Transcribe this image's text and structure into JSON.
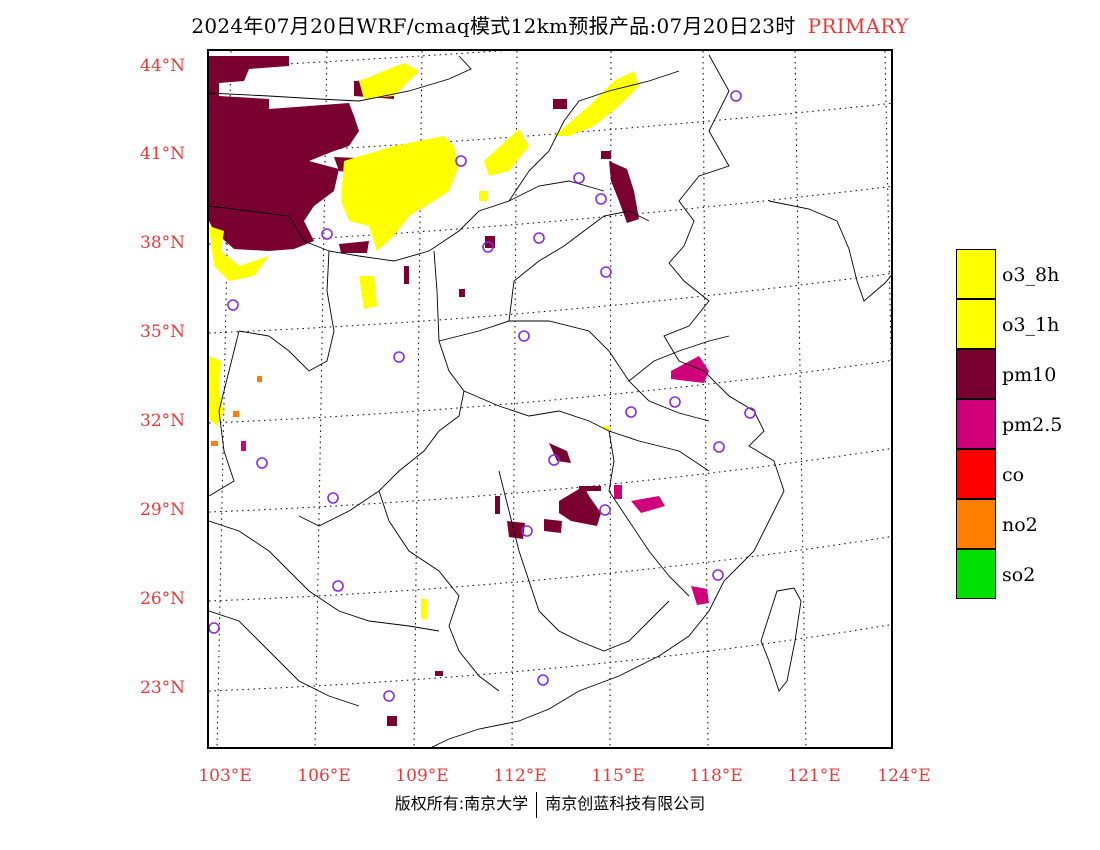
{
  "title": {
    "text": "2024年07月20日WRF/cmaq模式12km预报产品:07月20日23时",
    "tag": "PRIMARY"
  },
  "colors": {
    "tick_label": "#e8393a",
    "o3": "#ffff00",
    "pm10": "#7a0030",
    "pm25": "#d0007a",
    "co": "#ff0000",
    "no2": "#ff8000",
    "so2": "#00e000",
    "station_marker": "#8a2be2"
  },
  "lat_labels": [
    "44°N",
    "41°N",
    "38°N",
    "35°N",
    "32°N",
    "29°N",
    "26°N",
    "23°N"
  ],
  "lon_labels": [
    "103°E",
    "106°E",
    "109°E",
    "112°E",
    "115°E",
    "118°E",
    "121°E",
    "124°E"
  ],
  "legend": [
    {
      "label": "o3_8h",
      "color": "#ffff00"
    },
    {
      "label": "o3_1h",
      "color": "#ffff00"
    },
    {
      "label": "pm10",
      "color": "#7a0030"
    },
    {
      "label": "pm2.5",
      "color": "#d0007a"
    },
    {
      "label": "co",
      "color": "#ff0000"
    },
    {
      "label": "no2",
      "color": "#ff8000"
    },
    {
      "label": "so2",
      "color": "#00e000"
    }
  ],
  "copyright": {
    "left": "版权所有:南京大学",
    "right": "南京创蓝科技有限公司"
  }
}
